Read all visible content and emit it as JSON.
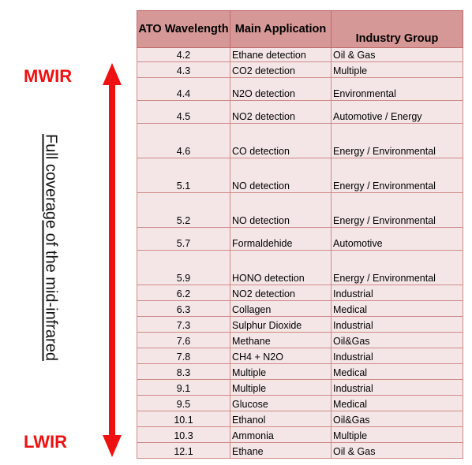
{
  "bands": {
    "top": "MWIR",
    "bottom": "LWIR"
  },
  "coverage_label": "Full coverage of the mid-infrared",
  "colors": {
    "arrow": "#ee1111",
    "header_bg": "#d69897",
    "row_bg": "#f4e6e6"
  },
  "table": {
    "headers": {
      "wavelength": "ATO Wavelength",
      "application": "Main Application",
      "industry": "Industry Group"
    },
    "rows": [
      {
        "wavelength": "4.2",
        "application": "Ethane detection",
        "industry": "Oil & Gas"
      },
      {
        "wavelength": "4.3",
        "application": "CO2 detection",
        "industry": "Multiple"
      },
      {
        "wavelength": "4.4",
        "application": "N2O detection",
        "industry": "Environmental"
      },
      {
        "wavelength": "4.5",
        "application": "NO2 detection",
        "industry": "Automotive / Energy"
      },
      {
        "wavelength": "4.6",
        "application": "CO detection",
        "industry": "Energy / Environmental"
      },
      {
        "wavelength": "5.1",
        "application": "NO detection",
        "industry": "Energy / Environmental"
      },
      {
        "wavelength": "5.2",
        "application": "NO detection",
        "industry": "Energy / Environmental"
      },
      {
        "wavelength": "5.7",
        "application": "Formaldehide",
        "industry": "Automotive"
      },
      {
        "wavelength": "5.9",
        "application": "HONO detection",
        "industry": "Energy / Environmental"
      },
      {
        "wavelength": "6.2",
        "application": "NO2 detection",
        "industry": "Industrial"
      },
      {
        "wavelength": "6.3",
        "application": "Collagen",
        "industry": "Medical"
      },
      {
        "wavelength": "7.3",
        "application": "Sulphur Dioxide",
        "industry": "Industrial"
      },
      {
        "wavelength": "7.6",
        "application": "Methane",
        "industry": "Oil&Gas"
      },
      {
        "wavelength": "7.8",
        "application": "CH4 + N2O",
        "industry": "Industrial"
      },
      {
        "wavelength": "8.3",
        "application": "Multiple",
        "industry": "Medical"
      },
      {
        "wavelength": "9.1",
        "application": "Multiple",
        "industry": "Industrial"
      },
      {
        "wavelength": "9.5",
        "application": "Glucose",
        "industry": "Medical"
      },
      {
        "wavelength": "10.1",
        "application": "Ethanol",
        "industry": "Oil&Gas"
      },
      {
        "wavelength": "10.3",
        "application": "Ammonia",
        "industry": "Multiple"
      },
      {
        "wavelength": "12.1",
        "application": "Ethane",
        "industry": "Oil & Gas"
      }
    ]
  }
}
